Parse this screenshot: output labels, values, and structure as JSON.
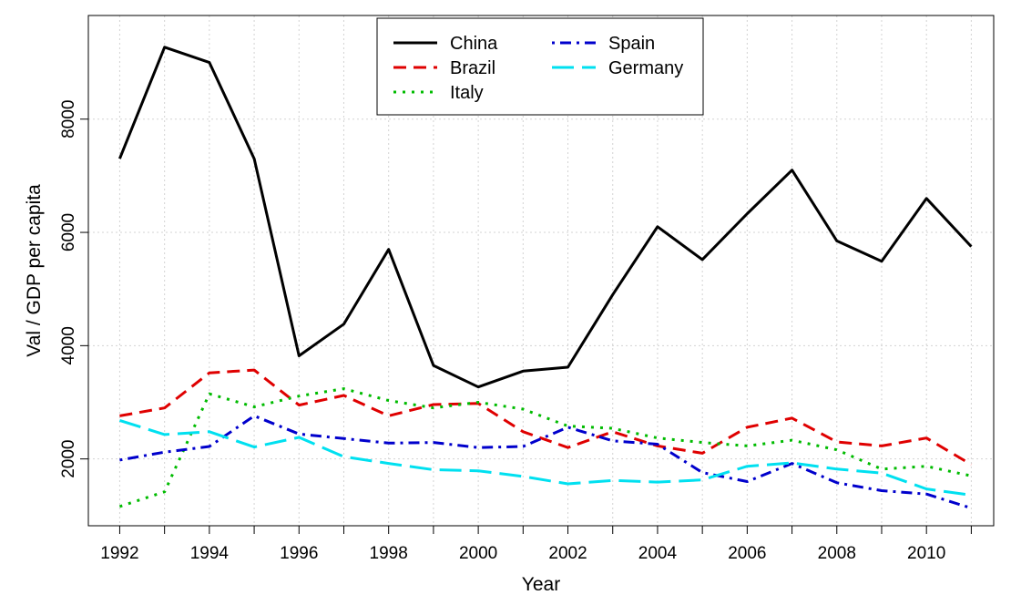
{
  "chart_data": {
    "type": "line",
    "xlabel": "Year",
    "ylabel": "Val / GDP per capita",
    "xlim": [
      1991.3,
      2011.5
    ],
    "ylim": [
      820,
      9830
    ],
    "xticks": [
      1992,
      1994,
      1996,
      1998,
      2000,
      2002,
      2004,
      2006,
      2008,
      2010
    ],
    "yticks": [
      2000,
      4000,
      6000,
      8000
    ],
    "grid": true,
    "legend_position": "top-center",
    "x": [
      1992,
      1993,
      1994,
      1995,
      1996,
      1997,
      1998,
      1999,
      2000,
      2001,
      2002,
      2003,
      2004,
      2005,
      2006,
      2007,
      2008,
      2009,
      2010,
      2011
    ],
    "series": [
      {
        "name": "China",
        "color": "#000000",
        "dash": "solid",
        "values": [
          7300,
          9270,
          9000,
          7300,
          3820,
          4380,
          5700,
          3650,
          3270,
          3550,
          3620,
          4900,
          6100,
          5520,
          6330,
          7100,
          5850,
          5490,
          6600,
          5750
        ]
      },
      {
        "name": "Brazil",
        "color": "#df0000",
        "dash": "dashed",
        "values": [
          2760,
          2900,
          3520,
          3570,
          2950,
          3120,
          2760,
          2960,
          2980,
          2480,
          2200,
          2480,
          2230,
          2100,
          2560,
          2720,
          2300,
          2230,
          2370,
          1900
        ]
      },
      {
        "name": "Italy",
        "color": "#00bb00",
        "dash": "dotted",
        "values": [
          1160,
          1420,
          3150,
          2920,
          3110,
          3240,
          3030,
          2900,
          3000,
          2880,
          2580,
          2540,
          2370,
          2290,
          2230,
          2330,
          2160,
          1820,
          1870,
          1700
        ]
      },
      {
        "name": "Spain",
        "color": "#0000cc",
        "dash": "dotdash",
        "values": [
          1980,
          2120,
          2220,
          2760,
          2440,
          2360,
          2280,
          2290,
          2200,
          2220,
          2560,
          2320,
          2260,
          1760,
          1600,
          1920,
          1580,
          1440,
          1380,
          1130
        ]
      },
      {
        "name": "Germany",
        "color": "#00e0f0",
        "dash": "longdash",
        "values": [
          2680,
          2430,
          2480,
          2210,
          2380,
          2040,
          1920,
          1810,
          1790,
          1690,
          1560,
          1620,
          1590,
          1630,
          1870,
          1930,
          1820,
          1750,
          1470,
          1360
        ]
      }
    ]
  }
}
